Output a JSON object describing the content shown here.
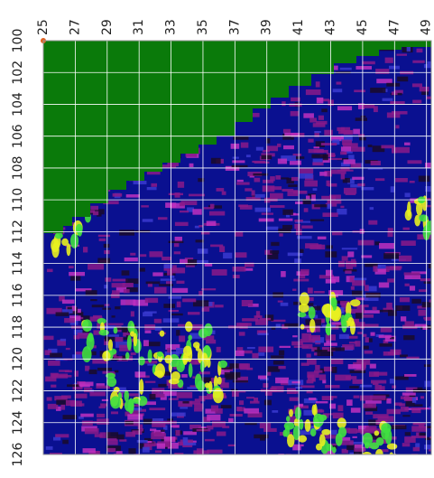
{
  "chart_data": {
    "type": "heatmap",
    "xlim": [
      25,
      49.3
    ],
    "xticks": [
      25,
      27,
      29,
      31,
      33,
      35,
      37,
      39,
      41,
      43,
      45,
      47,
      49
    ],
    "ylim": [
      100,
      126
    ],
    "yticks": [
      100,
      102,
      104,
      106,
      108,
      110,
      112,
      114,
      116,
      118,
      120,
      122,
      124,
      126
    ],
    "grid": true,
    "grid_color": "#ffffff",
    "background_color": "#0a1090",
    "masked_color": "#0a7a0a"
  }
}
